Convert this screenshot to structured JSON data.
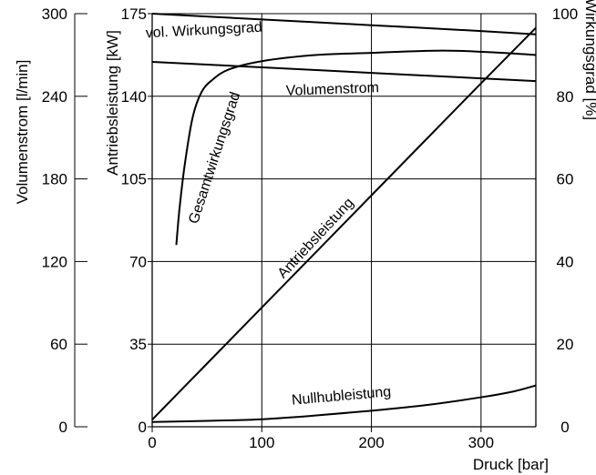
{
  "chart_data": {
    "type": "line",
    "title": "",
    "axes": {
      "druck": {
        "label": "Druck [bar]",
        "range": [
          0,
          350
        ],
        "ticks": [
          0,
          100,
          200,
          300
        ]
      },
      "volumenstrom": {
        "label": "Volumenstrom [l/min]",
        "range": [
          0,
          300
        ],
        "ticks": [
          0,
          60,
          120,
          180,
          240,
          300
        ]
      },
      "antriebsleistung": {
        "label": "Antriebsleistung [kW]",
        "range": [
          0,
          175
        ],
        "ticks": [
          0,
          35,
          70,
          105,
          140,
          175
        ]
      },
      "wirkungsgrad": {
        "label": "Wirkungsgrad [%]",
        "range": [
          0,
          100
        ],
        "ticks": [
          0,
          20,
          40,
          60,
          80,
          100
        ]
      }
    },
    "grid": true,
    "series": [
      {
        "name": "vol. Wirkungsgrad",
        "axis": "wirkungsgrad",
        "x": [
          0,
          100,
          200,
          300,
          350
        ],
        "y": [
          100,
          98.6,
          97.2,
          95.8,
          95
        ]
      },
      {
        "name": "Gesamtwirkungsgrad",
        "axis": "wirkungsgrad",
        "x": [
          22,
          25,
          30,
          37,
          45,
          55,
          70,
          100,
          150,
          200,
          250,
          280,
          320,
          350
        ],
        "y": [
          44,
          53,
          64,
          75,
          81,
          84,
          86.5,
          88.5,
          90,
          90.5,
          91,
          91,
          90.5,
          90
        ]
      },
      {
        "name": "Volumenstrom",
        "axis": "volumenstrom",
        "x": [
          0,
          100,
          200,
          300,
          350
        ],
        "y": [
          265,
          261,
          257,
          253,
          251
        ]
      },
      {
        "name": "Antriebsleistung",
        "axis": "antriebsleistung",
        "x": [
          0,
          100,
          200,
          300,
          350
        ],
        "y": [
          3,
          50.5,
          98,
          145.5,
          169
        ]
      },
      {
        "name": "Nullhubleistung",
        "axis": "antriebsleistung",
        "x": [
          0,
          50,
          100,
          150,
          200,
          250,
          300,
          330,
          350
        ],
        "y": [
          2,
          2.5,
          3.2,
          4.8,
          6.8,
          9.2,
          12.5,
          15,
          17.5
        ]
      }
    ]
  }
}
